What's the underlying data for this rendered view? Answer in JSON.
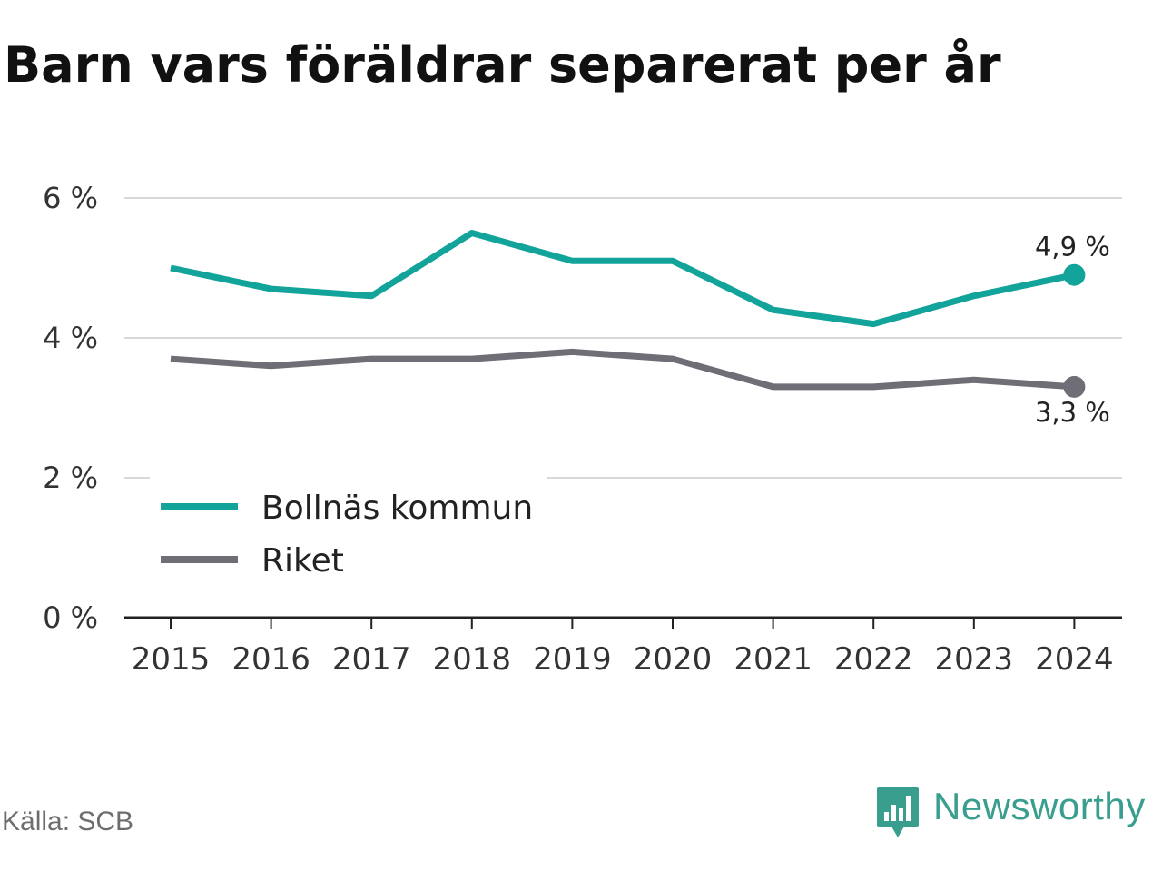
{
  "title": "Barn vars föräldrar separerat per år",
  "source": "Källa: SCB",
  "brand": {
    "name": "Newsworthy",
    "color": "#3a9e8f",
    "icon": "newsworthy-logo-icon"
  },
  "chart_data": {
    "type": "line",
    "title": "Barn vars föräldrar separerat per år",
    "x": [
      "2015",
      "2016",
      "2017",
      "2018",
      "2019",
      "2020",
      "2021",
      "2022",
      "2023",
      "2024"
    ],
    "ylim": [
      0,
      6
    ],
    "yticks": [
      0,
      2,
      4,
      6
    ],
    "ytick_labels": [
      "0 %",
      "2 %",
      "4 %",
      "6 %"
    ],
    "grid": true,
    "legend_position": "bottom-left",
    "series": [
      {
        "name": "Bollnäs kommun",
        "color": "#12a39a",
        "values": [
          5.0,
          4.7,
          4.6,
          5.5,
          5.1,
          5.1,
          4.4,
          4.2,
          4.6,
          4.9
        ],
        "end_label": "4,9 %"
      },
      {
        "name": "Riket",
        "color": "#6f6e77",
        "values": [
          3.7,
          3.6,
          3.7,
          3.7,
          3.8,
          3.7,
          3.3,
          3.3,
          3.4,
          3.3
        ],
        "end_label": "3,3 %"
      }
    ]
  }
}
